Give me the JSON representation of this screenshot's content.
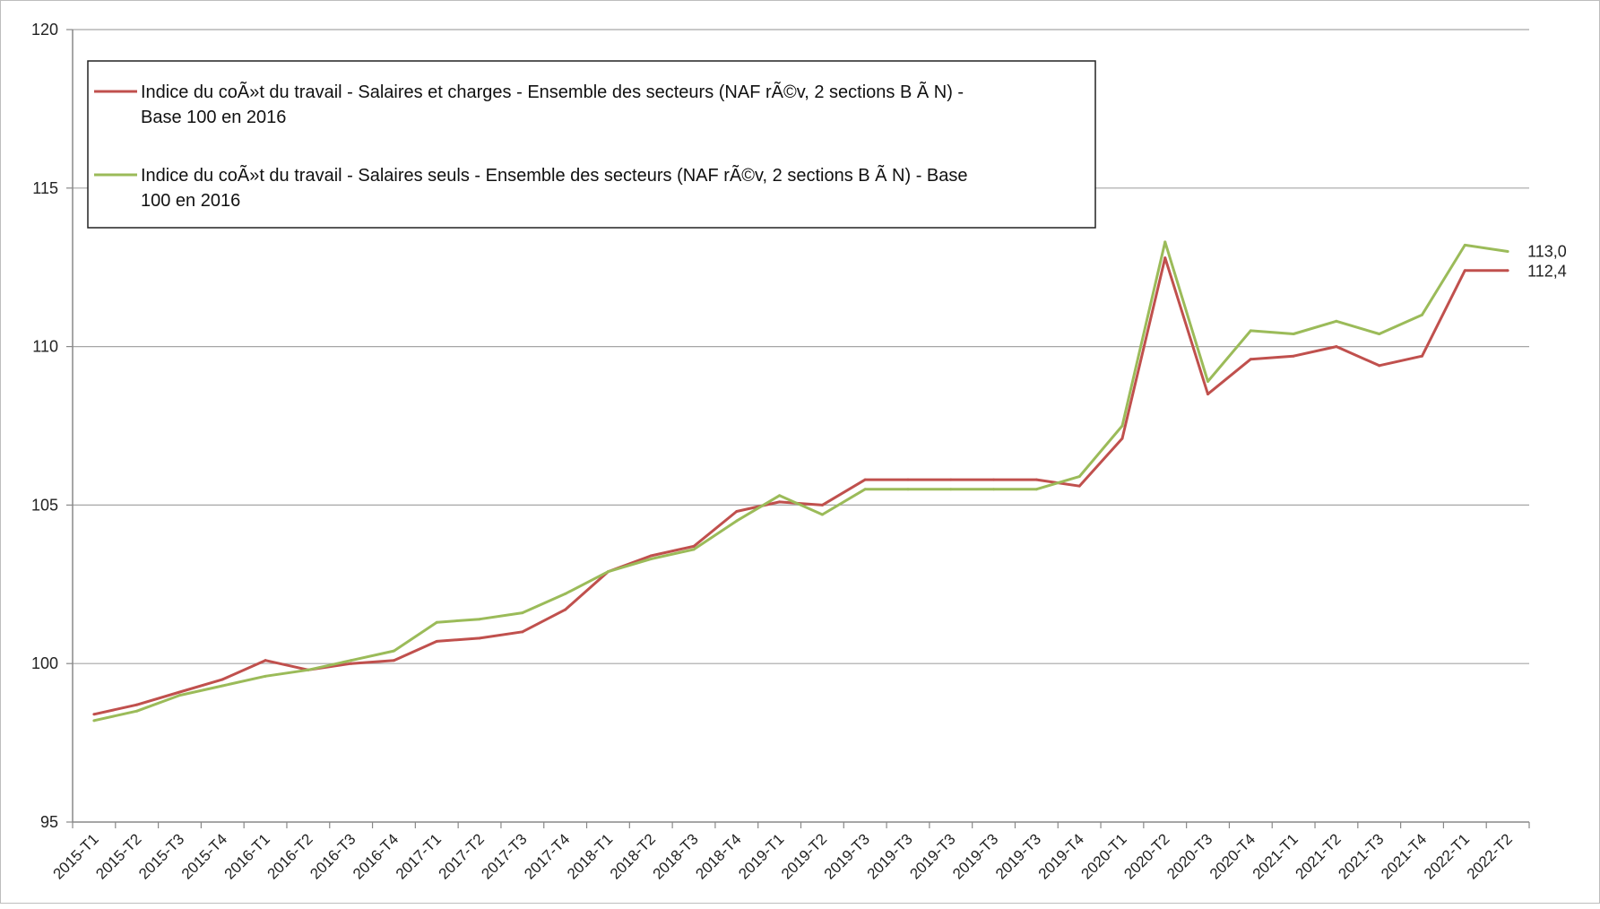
{
  "chart_data": {
    "type": "line",
    "categories": [
      "2015-T1",
      "2015-T2",
      "2015-T3",
      "2015-T4",
      "2016-T1",
      "2016-T2",
      "2016-T3",
      "2016-T4",
      "2017-T1",
      "2017-T2",
      "2017-T3",
      "2017-T4",
      "2018-T1",
      "2018-T2",
      "2018-T3",
      "2018-T4",
      "2019-T1",
      "2019-T2",
      "2019-T3",
      "2019-T3",
      "2019-T3",
      "2019-T3",
      "2019-T3",
      "2019-T4",
      "2020-T1",
      "2020-T2",
      "2020-T3",
      "2020-T4",
      "2021-T1",
      "2021-T2",
      "2021-T3",
      "2021-T4",
      "2022-T1",
      "2022-T2"
    ],
    "series": [
      {
        "name": "Indice du coÃ»t du travail - Salaires et charges - Ensemble des secteurs (NAF rÃ©v, 2 sections B Ã  N) - Base 100 en 2016",
        "name_lines": [
          "Indice du coÃ»t du travail - Salaires et charges - Ensemble des secteurs (NAF rÃ©v, 2 sections B Ã  N) -",
          "Base 100 en 2016"
        ],
        "color": "#c0504d",
        "values": [
          98.4,
          98.7,
          99.1,
          99.5,
          100.1,
          99.8,
          100.0,
          100.1,
          100.7,
          100.8,
          101.0,
          101.7,
          102.9,
          103.4,
          103.7,
          104.8,
          105.1,
          105.0,
          105.8,
          105.8,
          105.8,
          105.8,
          105.8,
          105.6,
          107.1,
          112.8,
          108.5,
          109.6,
          109.7,
          110.0,
          109.4,
          109.7,
          112.4,
          112.4
        ],
        "end_label": "112,4"
      },
      {
        "name": "Indice du coÃ»t du travail - Salaires seuls - Ensemble des secteurs (NAF rÃ©v, 2 sections B Ã  N) - Base 100 en 2016",
        "name_lines": [
          "Indice du coÃ»t du travail - Salaires seuls - Ensemble des secteurs (NAF rÃ©v, 2 sections B Ã  N) - Base",
          "100 en 2016"
        ],
        "color": "#9bbb59",
        "values": [
          98.2,
          98.5,
          99.0,
          99.3,
          99.6,
          99.8,
          100.1,
          100.4,
          101.3,
          101.4,
          101.6,
          102.2,
          102.9,
          103.3,
          103.6,
          104.5,
          105.3,
          104.7,
          105.5,
          105.5,
          105.5,
          105.5,
          105.5,
          105.9,
          107.5,
          113.3,
          108.9,
          110.5,
          110.4,
          110.8,
          110.4,
          111.0,
          113.2,
          113.0
        ],
        "end_label": "113,0"
      }
    ],
    "y_ticks": [
      "95",
      "100",
      "105",
      "110",
      "115",
      "120"
    ],
    "ylim": [
      95,
      120
    ],
    "grid": true,
    "legend_position": "top-left"
  }
}
